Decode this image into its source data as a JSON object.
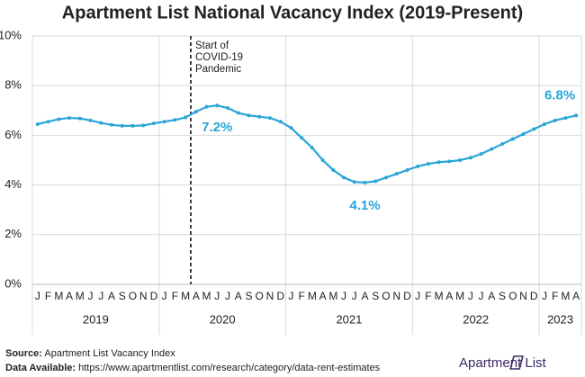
{
  "chart_data": {
    "type": "line",
    "title": "Apartment List National Vacancy Index (2019-Present)",
    "categories": [
      "J",
      "F",
      "M",
      "A",
      "M",
      "J",
      "J",
      "A",
      "S",
      "O",
      "N",
      "D",
      "J",
      "F",
      "M",
      "A",
      "M",
      "J",
      "J",
      "A",
      "S",
      "O",
      "N",
      "D",
      "J",
      "F",
      "M",
      "A",
      "M",
      "J",
      "J",
      "A",
      "S",
      "O",
      "N",
      "D",
      "J",
      "F",
      "M",
      "A",
      "M",
      "J",
      "J",
      "A",
      "S",
      "O",
      "N",
      "D",
      "J",
      "F",
      "M",
      "A"
    ],
    "years": [
      "2019",
      "2020",
      "2021",
      "2022",
      "2023"
    ],
    "series": [
      {
        "name": "National Vacancy Index",
        "color": "#2aa5d8",
        "values": [
          6.45,
          6.55,
          6.65,
          6.7,
          6.68,
          6.6,
          6.5,
          6.42,
          6.38,
          6.38,
          6.4,
          6.48,
          6.55,
          6.62,
          6.72,
          6.95,
          7.15,
          7.2,
          7.1,
          6.9,
          6.8,
          6.75,
          6.7,
          6.55,
          6.3,
          5.9,
          5.5,
          5.0,
          4.6,
          4.3,
          4.12,
          4.1,
          4.15,
          4.3,
          4.45,
          4.6,
          4.75,
          4.85,
          4.92,
          4.95,
          5.0,
          5.1,
          5.25,
          5.45,
          5.65,
          5.85,
          6.05,
          6.25,
          6.45,
          6.6,
          6.7,
          6.8
        ],
        "value_labels": [
          null,
          null,
          null,
          null,
          null,
          null,
          null,
          null,
          null,
          null,
          null,
          null,
          null,
          null,
          null,
          null,
          null,
          "7.2%",
          null,
          null,
          null,
          null,
          null,
          null,
          null,
          null,
          null,
          null,
          null,
          null,
          null,
          "4.1%",
          null,
          null,
          null,
          null,
          null,
          null,
          null,
          null,
          null,
          null,
          null,
          null,
          null,
          null,
          null,
          null,
          null,
          null,
          null,
          "6.8%"
        ]
      }
    ],
    "ylim": [
      0,
      10
    ],
    "yticks": [
      {
        "value": 0,
        "label": "0%"
      },
      {
        "value": 2,
        "label": "2%"
      },
      {
        "value": 4,
        "label": "4%"
      },
      {
        "value": 6,
        "label": "6%"
      },
      {
        "value": 8,
        "label": "8%"
      },
      {
        "value": 10,
        "label": "10%"
      }
    ],
    "grid": true,
    "event": {
      "label": [
        "Start of",
        "COVID-19",
        "Pandemic"
      ]
    },
    "source": {
      "label": "Source:",
      "text": "Apartment List Vacancy Index"
    },
    "data_available": {
      "label": "Data Available:",
      "text": "https://www.apartmentlist.com/research/category/data-rent-estimates"
    },
    "logo": "Apartment List"
  }
}
